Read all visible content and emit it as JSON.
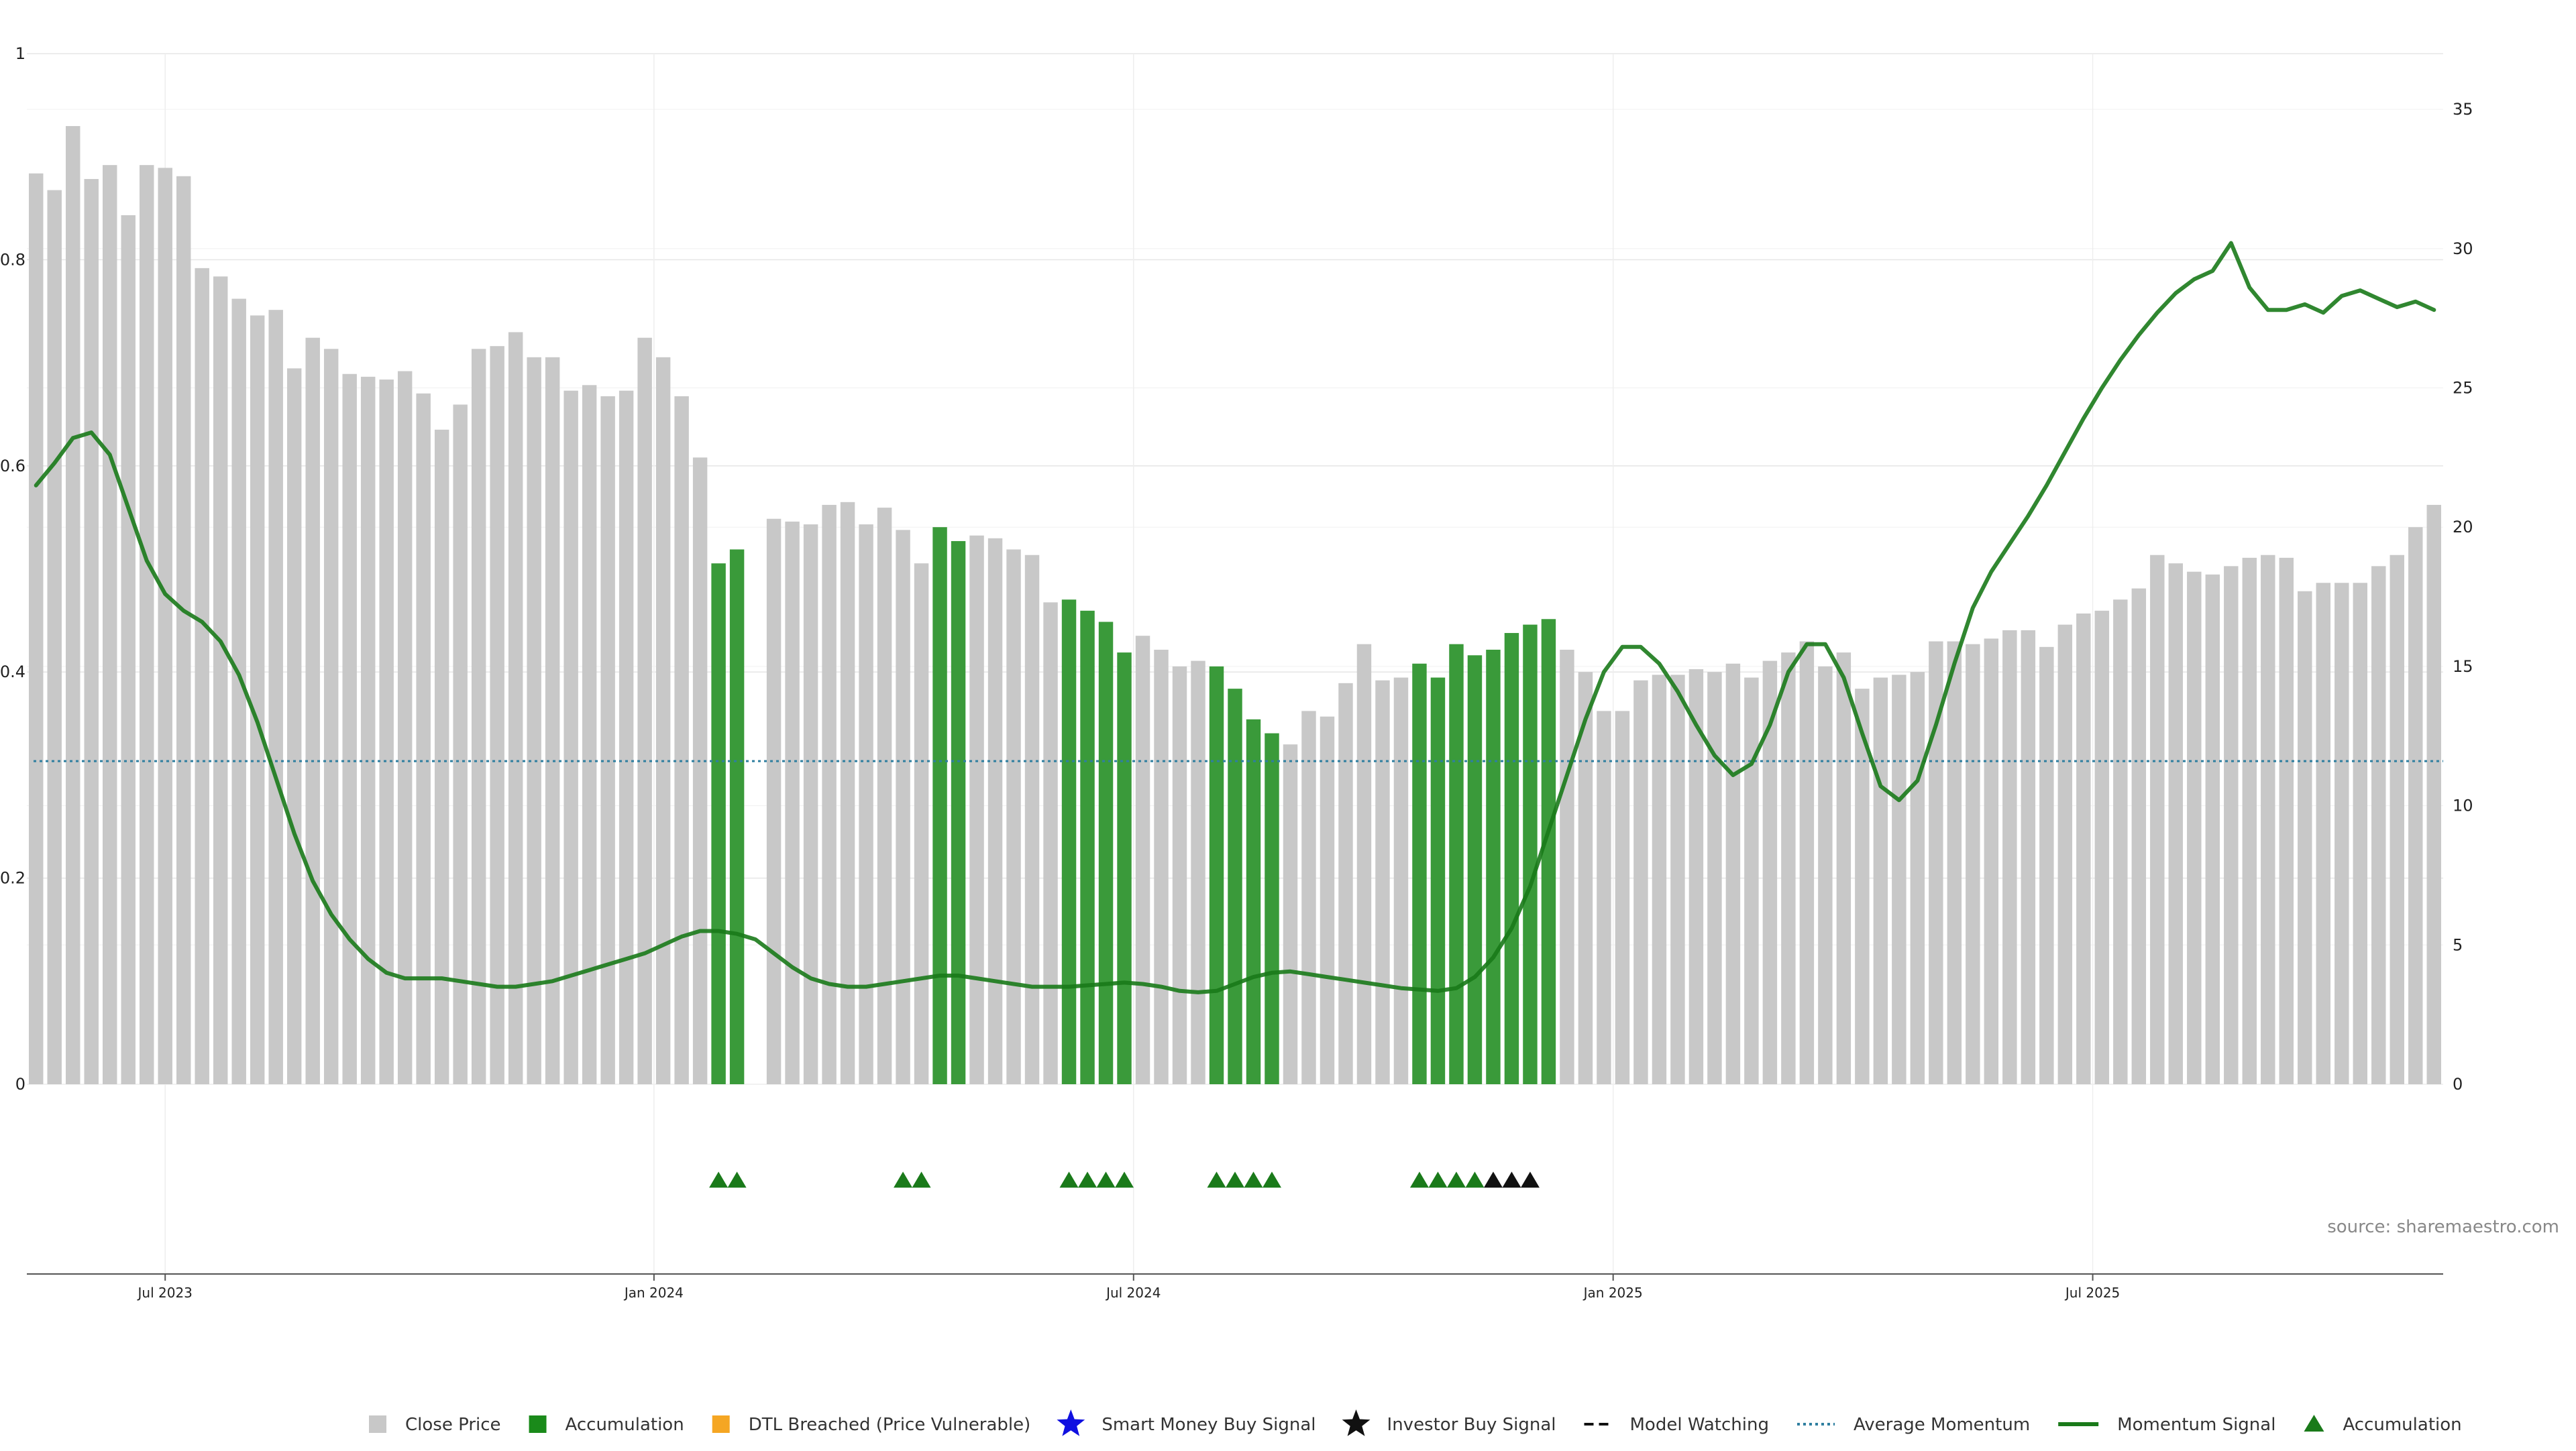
{
  "source_text": "source: sharemaestro.com",
  "colors": {
    "close_price": "#c8c8c8",
    "accumulation": "#3a9a3a",
    "momentum_line": "#1a7a1a",
    "average_momentum": "#2f7fa0",
    "smart_money": "#1010e0",
    "investor": "#111111",
    "dtl": "#f5a623",
    "marker_green": "#1a7a1a"
  },
  "legend": [
    {
      "key": "close",
      "label": "Close Price",
      "icon": "square-icon",
      "color": "#c8c8c8"
    },
    {
      "key": "accum",
      "label": "Accumulation",
      "icon": "square-icon",
      "color": "#1a8a1a"
    },
    {
      "key": "dtl",
      "label": "DTL Breached (Price Vulnerable)",
      "icon": "square-icon",
      "color": "#f5a623"
    },
    {
      "key": "smart",
      "label": "Smart Money Buy Signal",
      "icon": "star-icon",
      "color": "#1010e0"
    },
    {
      "key": "investor",
      "label": "Investor Buy Signal",
      "icon": "star-icon",
      "color": "#111111"
    },
    {
      "key": "watch",
      "label": "Model Watching",
      "icon": "dash-line-icon",
      "color": "#111111"
    },
    {
      "key": "avg",
      "label": "Average Momentum",
      "icon": "dotted-line-icon",
      "color": "#2f7fa0"
    },
    {
      "key": "mom",
      "label": "Momentum Signal",
      "icon": "solid-line-icon",
      "color": "#1a7a1a"
    },
    {
      "key": "accum_marker",
      "label": "Accumulation",
      "icon": "triangle-icon",
      "color": "#1a7a1a"
    }
  ],
  "chart_data": {
    "type": "bar",
    "left_axis": {
      "min": 0,
      "max": 1,
      "ticks": [
        0,
        0.2,
        0.4,
        0.6,
        0.8,
        1
      ],
      "tick_labels": [
        "0",
        "0.2",
        "0.4",
        "0.6",
        "0.8",
        "1"
      ]
    },
    "right_axis": {
      "min": 0,
      "max": 37,
      "ticks": [
        0,
        5,
        10,
        15,
        20,
        25,
        30,
        35
      ],
      "tick_labels": [
        "0",
        "5",
        "10",
        "15",
        "20",
        "25",
        "30",
        "35"
      ]
    },
    "x_tick_labels": [
      {
        "label": "Jul 2023",
        "index": 7
      },
      {
        "label": "Jan 2024",
        "index": 33.5
      },
      {
        "label": "Jul 2024",
        "index": 59.5
      },
      {
        "label": "Jan 2025",
        "index": 85.5
      },
      {
        "label": "Jul 2025",
        "index": 111.5
      }
    ],
    "close_price": [
      32.7,
      32.1,
      34.4,
      32.5,
      33.0,
      31.2,
      33.0,
      32.9,
      32.6,
      29.3,
      29.0,
      28.2,
      27.6,
      27.8,
      25.7,
      26.8,
      26.4,
      25.5,
      25.4,
      25.3,
      25.6,
      24.8,
      23.5,
      24.4,
      26.4,
      26.5,
      27.0,
      26.1,
      26.1,
      24.9,
      25.1,
      24.7,
      24.9,
      26.8,
      26.1,
      24.7,
      22.5,
      18.7,
      19.2,
      0,
      20.3,
      20.2,
      20.1,
      20.8,
      20.9,
      20.1,
      20.7,
      19.9,
      18.7,
      20.0,
      19.5,
      19.7,
      19.6,
      19.2,
      19.0,
      17.3,
      17.4,
      17.0,
      16.6,
      15.5,
      16.1,
      15.6,
      15.0,
      15.2,
      15.0,
      14.2,
      13.1,
      12.6,
      12.2,
      13.4,
      13.2,
      14.4,
      15.8,
      14.5,
      14.6,
      15.1,
      14.6,
      15.8,
      15.4,
      15.6,
      16.2,
      16.5,
      16.7,
      15.6,
      14.8,
      13.4,
      13.4,
      14.5,
      14.7,
      14.7,
      14.9,
      14.8,
      15.1,
      14.6,
      15.2,
      15.5,
      15.9,
      15.0,
      15.5,
      14.2,
      14.6,
      14.7,
      14.8,
      15.9,
      15.9,
      15.8,
      16.0,
      16.3,
      16.3,
      15.7,
      16.5,
      16.9,
      17.0,
      17.4,
      17.8,
      19.0,
      18.7,
      18.4,
      18.3,
      18.6,
      18.9,
      19.0,
      18.9,
      17.7,
      18.0,
      18.0,
      18.0,
      18.6,
      19.0,
      20.0,
      20.8
    ],
    "accumulation_bars": [
      37,
      38,
      49,
      50,
      56,
      57,
      58,
      59,
      64,
      65,
      66,
      67,
      75,
      76,
      77,
      78,
      79,
      80,
      81,
      82
    ],
    "momentum_signal": [
      21.5,
      22.3,
      23.2,
      23.4,
      22.6,
      20.7,
      18.8,
      17.6,
      17.0,
      16.6,
      15.9,
      14.7,
      13.0,
      11.0,
      9.0,
      7.3,
      6.1,
      5.2,
      4.5,
      4.0,
      3.8,
      3.8,
      3.8,
      3.7,
      3.6,
      3.5,
      3.5,
      3.6,
      3.7,
      3.9,
      4.1,
      4.3,
      4.5,
      4.7,
      5.0,
      5.3,
      5.5,
      5.5,
      5.4,
      5.2,
      4.7,
      4.2,
      3.8,
      3.6,
      3.5,
      3.5,
      3.6,
      3.7,
      3.8,
      3.9,
      3.9,
      3.8,
      3.7,
      3.6,
      3.5,
      3.5,
      3.5,
      3.55,
      3.6,
      3.65,
      3.6,
      3.5,
      3.35,
      3.3,
      3.35,
      3.6,
      3.85,
      4.0,
      4.05,
      3.95,
      3.85,
      3.75,
      3.65,
      3.55,
      3.45,
      3.4,
      3.35,
      3.45,
      3.85,
      4.55,
      5.6,
      7.1,
      9.1,
      11.1,
      13.1,
      14.8,
      15.7,
      15.7,
      15.1,
      14.1,
      12.9,
      11.8,
      11.1,
      11.5,
      12.9,
      14.8,
      15.8,
      15.8,
      14.6,
      12.6,
      10.7,
      10.2,
      10.9,
      12.9,
      15.1,
      17.1,
      18.4,
      19.4,
      20.4,
      21.5,
      22.7,
      23.9,
      25.0,
      26.0,
      26.9,
      27.7,
      28.4,
      28.9,
      29.2,
      30.2,
      28.6,
      27.8,
      27.8,
      28.0,
      27.7,
      28.3,
      28.5,
      28.2,
      27.9,
      28.1,
      27.8
    ],
    "average_momentum": 11.6,
    "signal_markers": [
      {
        "index": 37,
        "type": "accumulation"
      },
      {
        "index": 38,
        "type": "accumulation"
      },
      {
        "index": 47,
        "type": "accumulation"
      },
      {
        "index": 48,
        "type": "accumulation"
      },
      {
        "index": 56,
        "type": "accumulation"
      },
      {
        "index": 57,
        "type": "accumulation"
      },
      {
        "index": 58,
        "type": "accumulation"
      },
      {
        "index": 59,
        "type": "accumulation"
      },
      {
        "index": 64,
        "type": "accumulation"
      },
      {
        "index": 65,
        "type": "accumulation"
      },
      {
        "index": 66,
        "type": "accumulation"
      },
      {
        "index": 67,
        "type": "accumulation"
      },
      {
        "index": 75,
        "type": "accumulation"
      },
      {
        "index": 76,
        "type": "accumulation"
      },
      {
        "index": 77,
        "type": "accumulation"
      },
      {
        "index": 78,
        "type": "accumulation"
      },
      {
        "index": 79,
        "type": "investor"
      },
      {
        "index": 80,
        "type": "investor"
      },
      {
        "index": 81,
        "type": "investor"
      }
    ],
    "legend_placement": "bottom-center",
    "grid": true
  }
}
